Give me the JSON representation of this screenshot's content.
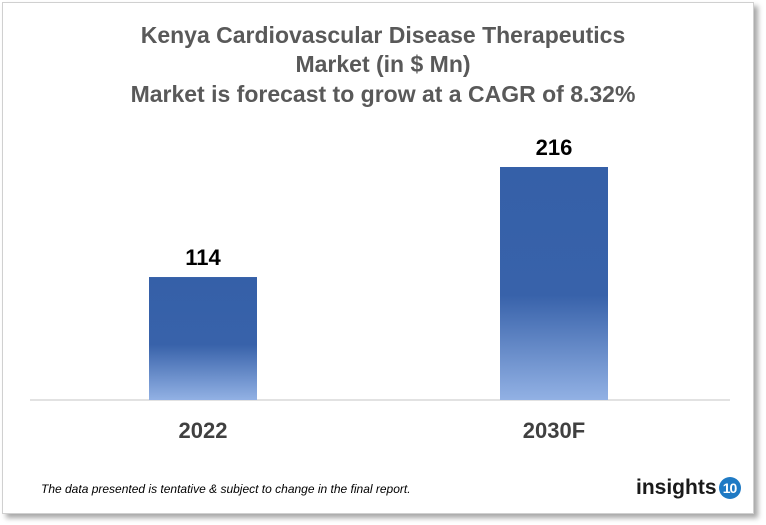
{
  "chart_data": {
    "type": "bar",
    "title": [
      "Kenya Cardiovascular Disease Therapeutics",
      "Market (in $ Mn)",
      "Market is forecast to grow at a CAGR of 8.32%"
    ],
    "categories": [
      "2022",
      "2030F"
    ],
    "values": [
      114,
      216
    ],
    "data_labels": [
      "114",
      "216"
    ],
    "xlabel": "",
    "ylabel": "",
    "grid": false,
    "colors": {
      "bar_top": "#3560a8",
      "bar_bottom": "#92b1e4"
    }
  },
  "footer": {
    "note": "The data presented is tentative & subject to change in the final report.",
    "logo_text": "insights",
    "logo_number": "10"
  }
}
